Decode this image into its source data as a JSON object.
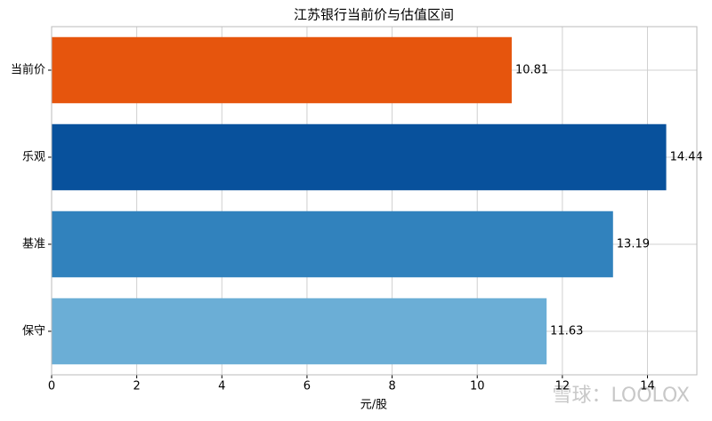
{
  "chart_data": {
    "type": "barh",
    "title": "江苏银行当前价与估值区间",
    "categories": [
      "当前价",
      "乐观",
      "基准",
      "保守"
    ],
    "values": [
      10.81,
      14.44,
      13.19,
      11.63
    ],
    "colors": [
      "#e6550d",
      "#08519c",
      "#3182bd",
      "#6baed6"
    ],
    "x_label": "元/股",
    "xlim": [
      0,
      15.16
    ],
    "xticks": [
      0,
      2,
      4,
      6,
      8,
      10,
      12,
      14
    ],
    "grid": true,
    "watermark": "雪球：LOOLOX"
  }
}
